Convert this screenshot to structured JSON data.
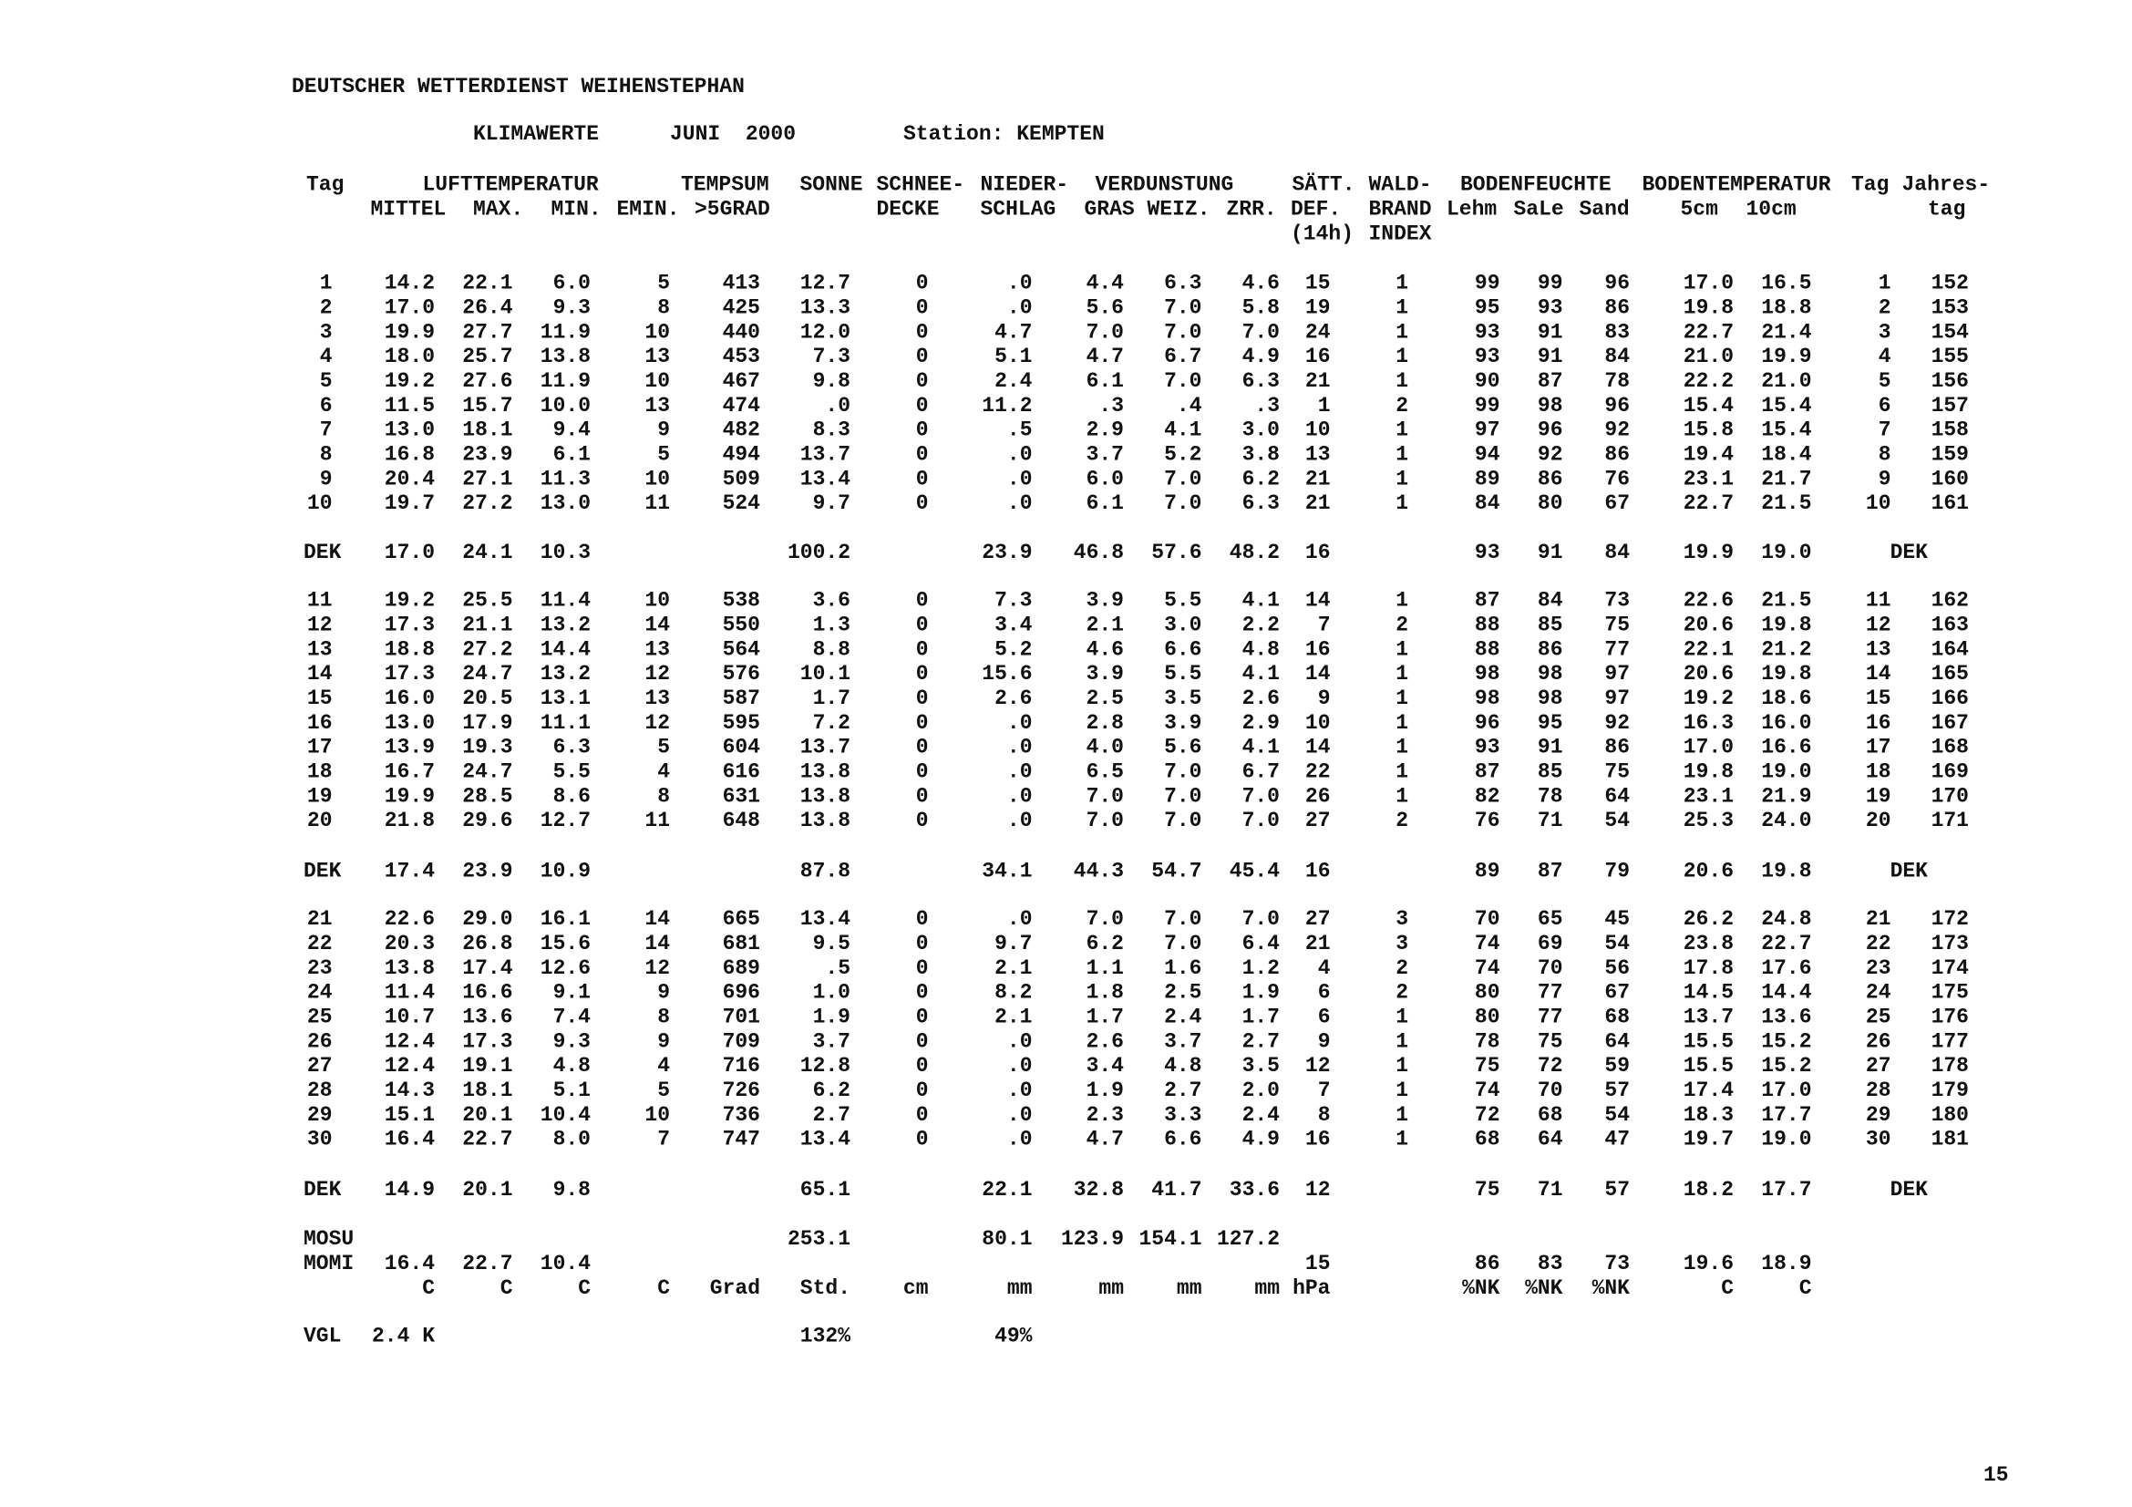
{
  "header": {
    "institution": "DEUTSCHER WETTERDIENST WEIHENSTEPHAN",
    "title": "KLIMAWERTE",
    "period": "JUNI  2000",
    "station": "Station: KEMPTEN"
  },
  "column_headers": [
    [
      "Tag",
      "LUFTTEMPERATUR",
      "TEMPSUM",
      "SONNE",
      "SCHNEE-",
      "NIEDER-",
      "VERDUNSTUNG",
      "SÄTT.",
      "WALD-",
      "BODENFEUCHTE",
      "BODENTEMPERATUR",
      "Tag",
      "Jahres-"
    ],
    [
      "MITTEL",
      "MAX.",
      "MIN.",
      "EMIN.",
      ">5GRAD",
      "DECKE",
      "SCHLAG",
      "GRAS",
      "WEIZ.",
      "ZRR.",
      "DEF.",
      "BRAND",
      "Lehm",
      "SaLe",
      "Sand",
      "5cm",
      "10cm",
      "tag"
    ],
    [
      "(14h)",
      "INDEX"
    ]
  ],
  "rows": [
    [
      "1",
      "14.2",
      "22.1",
      "6.0",
      "5",
      "413",
      "12.7",
      "0",
      ".0",
      "4.4",
      "6.3",
      "4.6",
      "15",
      "1",
      "99",
      "99",
      "96",
      "17.0",
      "16.5",
      "1",
      "152"
    ],
    [
      "2",
      "17.0",
      "26.4",
      "9.3",
      "8",
      "425",
      "13.3",
      "0",
      ".0",
      "5.6",
      "7.0",
      "5.8",
      "19",
      "1",
      "95",
      "93",
      "86",
      "19.8",
      "18.8",
      "2",
      "153"
    ],
    [
      "3",
      "19.9",
      "27.7",
      "11.9",
      "10",
      "440",
      "12.0",
      "0",
      "4.7",
      "7.0",
      "7.0",
      "7.0",
      "24",
      "1",
      "93",
      "91",
      "83",
      "22.7",
      "21.4",
      "3",
      "154"
    ],
    [
      "4",
      "18.0",
      "25.7",
      "13.8",
      "13",
      "453",
      "7.3",
      "0",
      "5.1",
      "4.7",
      "6.7",
      "4.9",
      "16",
      "1",
      "93",
      "91",
      "84",
      "21.0",
      "19.9",
      "4",
      "155"
    ],
    [
      "5",
      "19.2",
      "27.6",
      "11.9",
      "10",
      "467",
      "9.8",
      "0",
      "2.4",
      "6.1",
      "7.0",
      "6.3",
      "21",
      "1",
      "90",
      "87",
      "78",
      "22.2",
      "21.0",
      "5",
      "156"
    ],
    [
      "6",
      "11.5",
      "15.7",
      "10.0",
      "13",
      "474",
      ".0",
      "0",
      "11.2",
      ".3",
      ".4",
      ".3",
      "1",
      "2",
      "99",
      "98",
      "96",
      "15.4",
      "15.4",
      "6",
      "157"
    ],
    [
      "7",
      "13.0",
      "18.1",
      "9.4",
      "9",
      "482",
      "8.3",
      "0",
      ".5",
      "2.9",
      "4.1",
      "3.0",
      "10",
      "1",
      "97",
      "96",
      "92",
      "15.8",
      "15.4",
      "7",
      "158"
    ],
    [
      "8",
      "16.8",
      "23.9",
      "6.1",
      "5",
      "494",
      "13.7",
      "0",
      ".0",
      "3.7",
      "5.2",
      "3.8",
      "13",
      "1",
      "94",
      "92",
      "86",
      "19.4",
      "18.4",
      "8",
      "159"
    ],
    [
      "9",
      "20.4",
      "27.1",
      "11.3",
      "10",
      "509",
      "13.4",
      "0",
      ".0",
      "6.0",
      "7.0",
      "6.2",
      "21",
      "1",
      "89",
      "86",
      "76",
      "23.1",
      "21.7",
      "9",
      "160"
    ],
    [
      "10",
      "19.7",
      "27.2",
      "13.0",
      "11",
      "524",
      "9.7",
      "0",
      ".0",
      "6.1",
      "7.0",
      "6.3",
      "21",
      "1",
      "84",
      "80",
      "67",
      "22.7",
      "21.5",
      "10",
      "161"
    ],
    [
      "DEK",
      "17.0",
      "24.1",
      "10.3",
      null,
      null,
      "100.2",
      null,
      "23.9",
      "46.8",
      "57.6",
      "48.2",
      "16",
      null,
      "93",
      "91",
      "84",
      "19.9",
      "19.0",
      "DEK",
      null
    ],
    [
      "11",
      "19.2",
      "25.5",
      "11.4",
      "10",
      "538",
      "3.6",
      "0",
      "7.3",
      "3.9",
      "5.5",
      "4.1",
      "14",
      "1",
      "87",
      "84",
      "73",
      "22.6",
      "21.5",
      "11",
      "162"
    ],
    [
      "12",
      "17.3",
      "21.1",
      "13.2",
      "14",
      "550",
      "1.3",
      "0",
      "3.4",
      "2.1",
      "3.0",
      "2.2",
      "7",
      "2",
      "88",
      "85",
      "75",
      "20.6",
      "19.8",
      "12",
      "163"
    ],
    [
      "13",
      "18.8",
      "27.2",
      "14.4",
      "13",
      "564",
      "8.8",
      "0",
      "5.2",
      "4.6",
      "6.6",
      "4.8",
      "16",
      "1",
      "88",
      "86",
      "77",
      "22.1",
      "21.2",
      "13",
      "164"
    ],
    [
      "14",
      "17.3",
      "24.7",
      "13.2",
      "12",
      "576",
      "10.1",
      "0",
      "15.6",
      "3.9",
      "5.5",
      "4.1",
      "14",
      "1",
      "98",
      "98",
      "97",
      "20.6",
      "19.8",
      "14",
      "165"
    ],
    [
      "15",
      "16.0",
      "20.5",
      "13.1",
      "13",
      "587",
      "1.7",
      "0",
      "2.6",
      "2.5",
      "3.5",
      "2.6",
      "9",
      "1",
      "98",
      "98",
      "97",
      "19.2",
      "18.6",
      "15",
      "166"
    ],
    [
      "16",
      "13.0",
      "17.9",
      "11.1",
      "12",
      "595",
      "7.2",
      "0",
      ".0",
      "2.8",
      "3.9",
      "2.9",
      "10",
      "1",
      "96",
      "95",
      "92",
      "16.3",
      "16.0",
      "16",
      "167"
    ],
    [
      "17",
      "13.9",
      "19.3",
      "6.3",
      "5",
      "604",
      "13.7",
      "0",
      ".0",
      "4.0",
      "5.6",
      "4.1",
      "14",
      "1",
      "93",
      "91",
      "86",
      "17.0",
      "16.6",
      "17",
      "168"
    ],
    [
      "18",
      "16.7",
      "24.7",
      "5.5",
      "4",
      "616",
      "13.8",
      "0",
      ".0",
      "6.5",
      "7.0",
      "6.7",
      "22",
      "1",
      "87",
      "85",
      "75",
      "19.8",
      "19.0",
      "18",
      "169"
    ],
    [
      "19",
      "19.9",
      "28.5",
      "8.6",
      "8",
      "631",
      "13.8",
      "0",
      ".0",
      "7.0",
      "7.0",
      "7.0",
      "26",
      "1",
      "82",
      "78",
      "64",
      "23.1",
      "21.9",
      "19",
      "170"
    ],
    [
      "20",
      "21.8",
      "29.6",
      "12.7",
      "11",
      "648",
      "13.8",
      "0",
      ".0",
      "7.0",
      "7.0",
      "7.0",
      "27",
      "2",
      "76",
      "71",
      "54",
      "25.3",
      "24.0",
      "20",
      "171"
    ],
    [
      "DEK",
      "17.4",
      "23.9",
      "10.9",
      null,
      null,
      "87.8",
      null,
      "34.1",
      "44.3",
      "54.7",
      "45.4",
      "16",
      null,
      "89",
      "87",
      "79",
      "20.6",
      "19.8",
      "DEK",
      null
    ],
    [
      "21",
      "22.6",
      "29.0",
      "16.1",
      "14",
      "665",
      "13.4",
      "0",
      ".0",
      "7.0",
      "7.0",
      "7.0",
      "27",
      "3",
      "70",
      "65",
      "45",
      "26.2",
      "24.8",
      "21",
      "172"
    ],
    [
      "22",
      "20.3",
      "26.8",
      "15.6",
      "14",
      "681",
      "9.5",
      "0",
      "9.7",
      "6.2",
      "7.0",
      "6.4",
      "21",
      "3",
      "74",
      "69",
      "54",
      "23.8",
      "22.7",
      "22",
      "173"
    ],
    [
      "23",
      "13.8",
      "17.4",
      "12.6",
      "12",
      "689",
      ".5",
      "0",
      "2.1",
      "1.1",
      "1.6",
      "1.2",
      "4",
      "2",
      "74",
      "70",
      "56",
      "17.8",
      "17.6",
      "23",
      "174"
    ],
    [
      "24",
      "11.4",
      "16.6",
      "9.1",
      "9",
      "696",
      "1.0",
      "0",
      "8.2",
      "1.8",
      "2.5",
      "1.9",
      "6",
      "2",
      "80",
      "77",
      "67",
      "14.5",
      "14.4",
      "24",
      "175"
    ],
    [
      "25",
      "10.7",
      "13.6",
      "7.4",
      "8",
      "701",
      "1.9",
      "0",
      "2.1",
      "1.7",
      "2.4",
      "1.7",
      "6",
      "1",
      "80",
      "77",
      "68",
      "13.7",
      "13.6",
      "25",
      "176"
    ],
    [
      "26",
      "12.4",
      "17.3",
      "9.3",
      "9",
      "709",
      "3.7",
      "0",
      ".0",
      "2.6",
      "3.7",
      "2.7",
      "9",
      "1",
      "78",
      "75",
      "64",
      "15.5",
      "15.2",
      "26",
      "177"
    ],
    [
      "27",
      "12.4",
      "19.1",
      "4.8",
      "4",
      "716",
      "12.8",
      "0",
      ".0",
      "3.4",
      "4.8",
      "3.5",
      "12",
      "1",
      "75",
      "72",
      "59",
      "15.5",
      "15.2",
      "27",
      "178"
    ],
    [
      "28",
      "14.3",
      "18.1",
      "5.1",
      "5",
      "726",
      "6.2",
      "0",
      ".0",
      "1.9",
      "2.7",
      "2.0",
      "7",
      "1",
      "74",
      "70",
      "57",
      "17.4",
      "17.0",
      "28",
      "179"
    ],
    [
      "29",
      "15.1",
      "20.1",
      "10.4",
      "10",
      "736",
      "2.7",
      "0",
      ".0",
      "2.3",
      "3.3",
      "2.4",
      "8",
      "1",
      "72",
      "68",
      "54",
      "18.3",
      "17.7",
      "29",
      "180"
    ],
    [
      "30",
      "16.4",
      "22.7",
      "8.0",
      "7",
      "747",
      "13.4",
      "0",
      ".0",
      "4.7",
      "6.6",
      "4.9",
      "16",
      "1",
      "68",
      "64",
      "47",
      "19.7",
      "19.0",
      "30",
      "181"
    ],
    [
      "DEK",
      "14.9",
      "20.1",
      "9.8",
      null,
      null,
      "65.1",
      null,
      "22.1",
      "32.8",
      "41.7",
      "33.6",
      "12",
      null,
      "75",
      "71",
      "57",
      "18.2",
      "17.7",
      "DEK",
      null
    ],
    [
      "MOSU",
      null,
      null,
      null,
      null,
      null,
      "253.1",
      null,
      "80.1",
      "123.9",
      "154.1",
      "127.2",
      null,
      null,
      null,
      null,
      null,
      null,
      null,
      null,
      null
    ],
    [
      "MOMI",
      "16.4",
      "22.7",
      "10.4",
      null,
      null,
      null,
      null,
      null,
      null,
      null,
      null,
      "15",
      null,
      "86",
      "83",
      "73",
      "19.6",
      "18.9",
      null,
      null
    ],
    [
      null,
      "C",
      "C",
      "C",
      "C",
      "Grad",
      "Std.",
      "cm",
      "mm",
      "mm",
      "mm",
      "mm",
      "hPa",
      null,
      "%NK",
      "%NK",
      "%NK",
      "C",
      "C",
      null,
      null
    ],
    [
      "VGL",
      "2.4 K",
      null,
      null,
      null,
      null,
      "132%",
      null,
      "49%",
      null,
      null,
      null,
      null,
      null,
      null,
      null,
      null,
      null,
      null,
      null,
      null
    ]
  ],
  "page_number": "15"
}
